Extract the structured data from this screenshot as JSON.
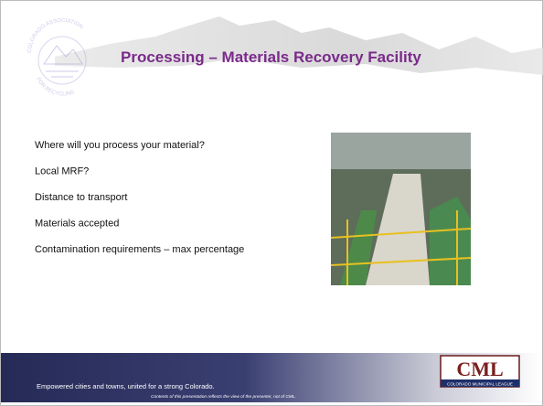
{
  "header": {
    "title": "Processing – Materials Recovery Facility",
    "logo": {
      "top": "COLORADO ASSOCIATION",
      "bottom": "FOR RECYCLING"
    }
  },
  "bullets": [
    "Where will you process your material?",
    "Local MRF?",
    "Distance to transport",
    "Materials accepted",
    "Contamination requirements – max percentage"
  ],
  "footer": {
    "tagline": "Empowered cities and towns, united for a strong Colorado.",
    "disclaimer": "Contents of this presentation reflects the view of the presenter, not of CML.",
    "logo": {
      "name": "CML",
      "subtitle": "COLORADO MUNICIPAL LEAGUE"
    }
  }
}
